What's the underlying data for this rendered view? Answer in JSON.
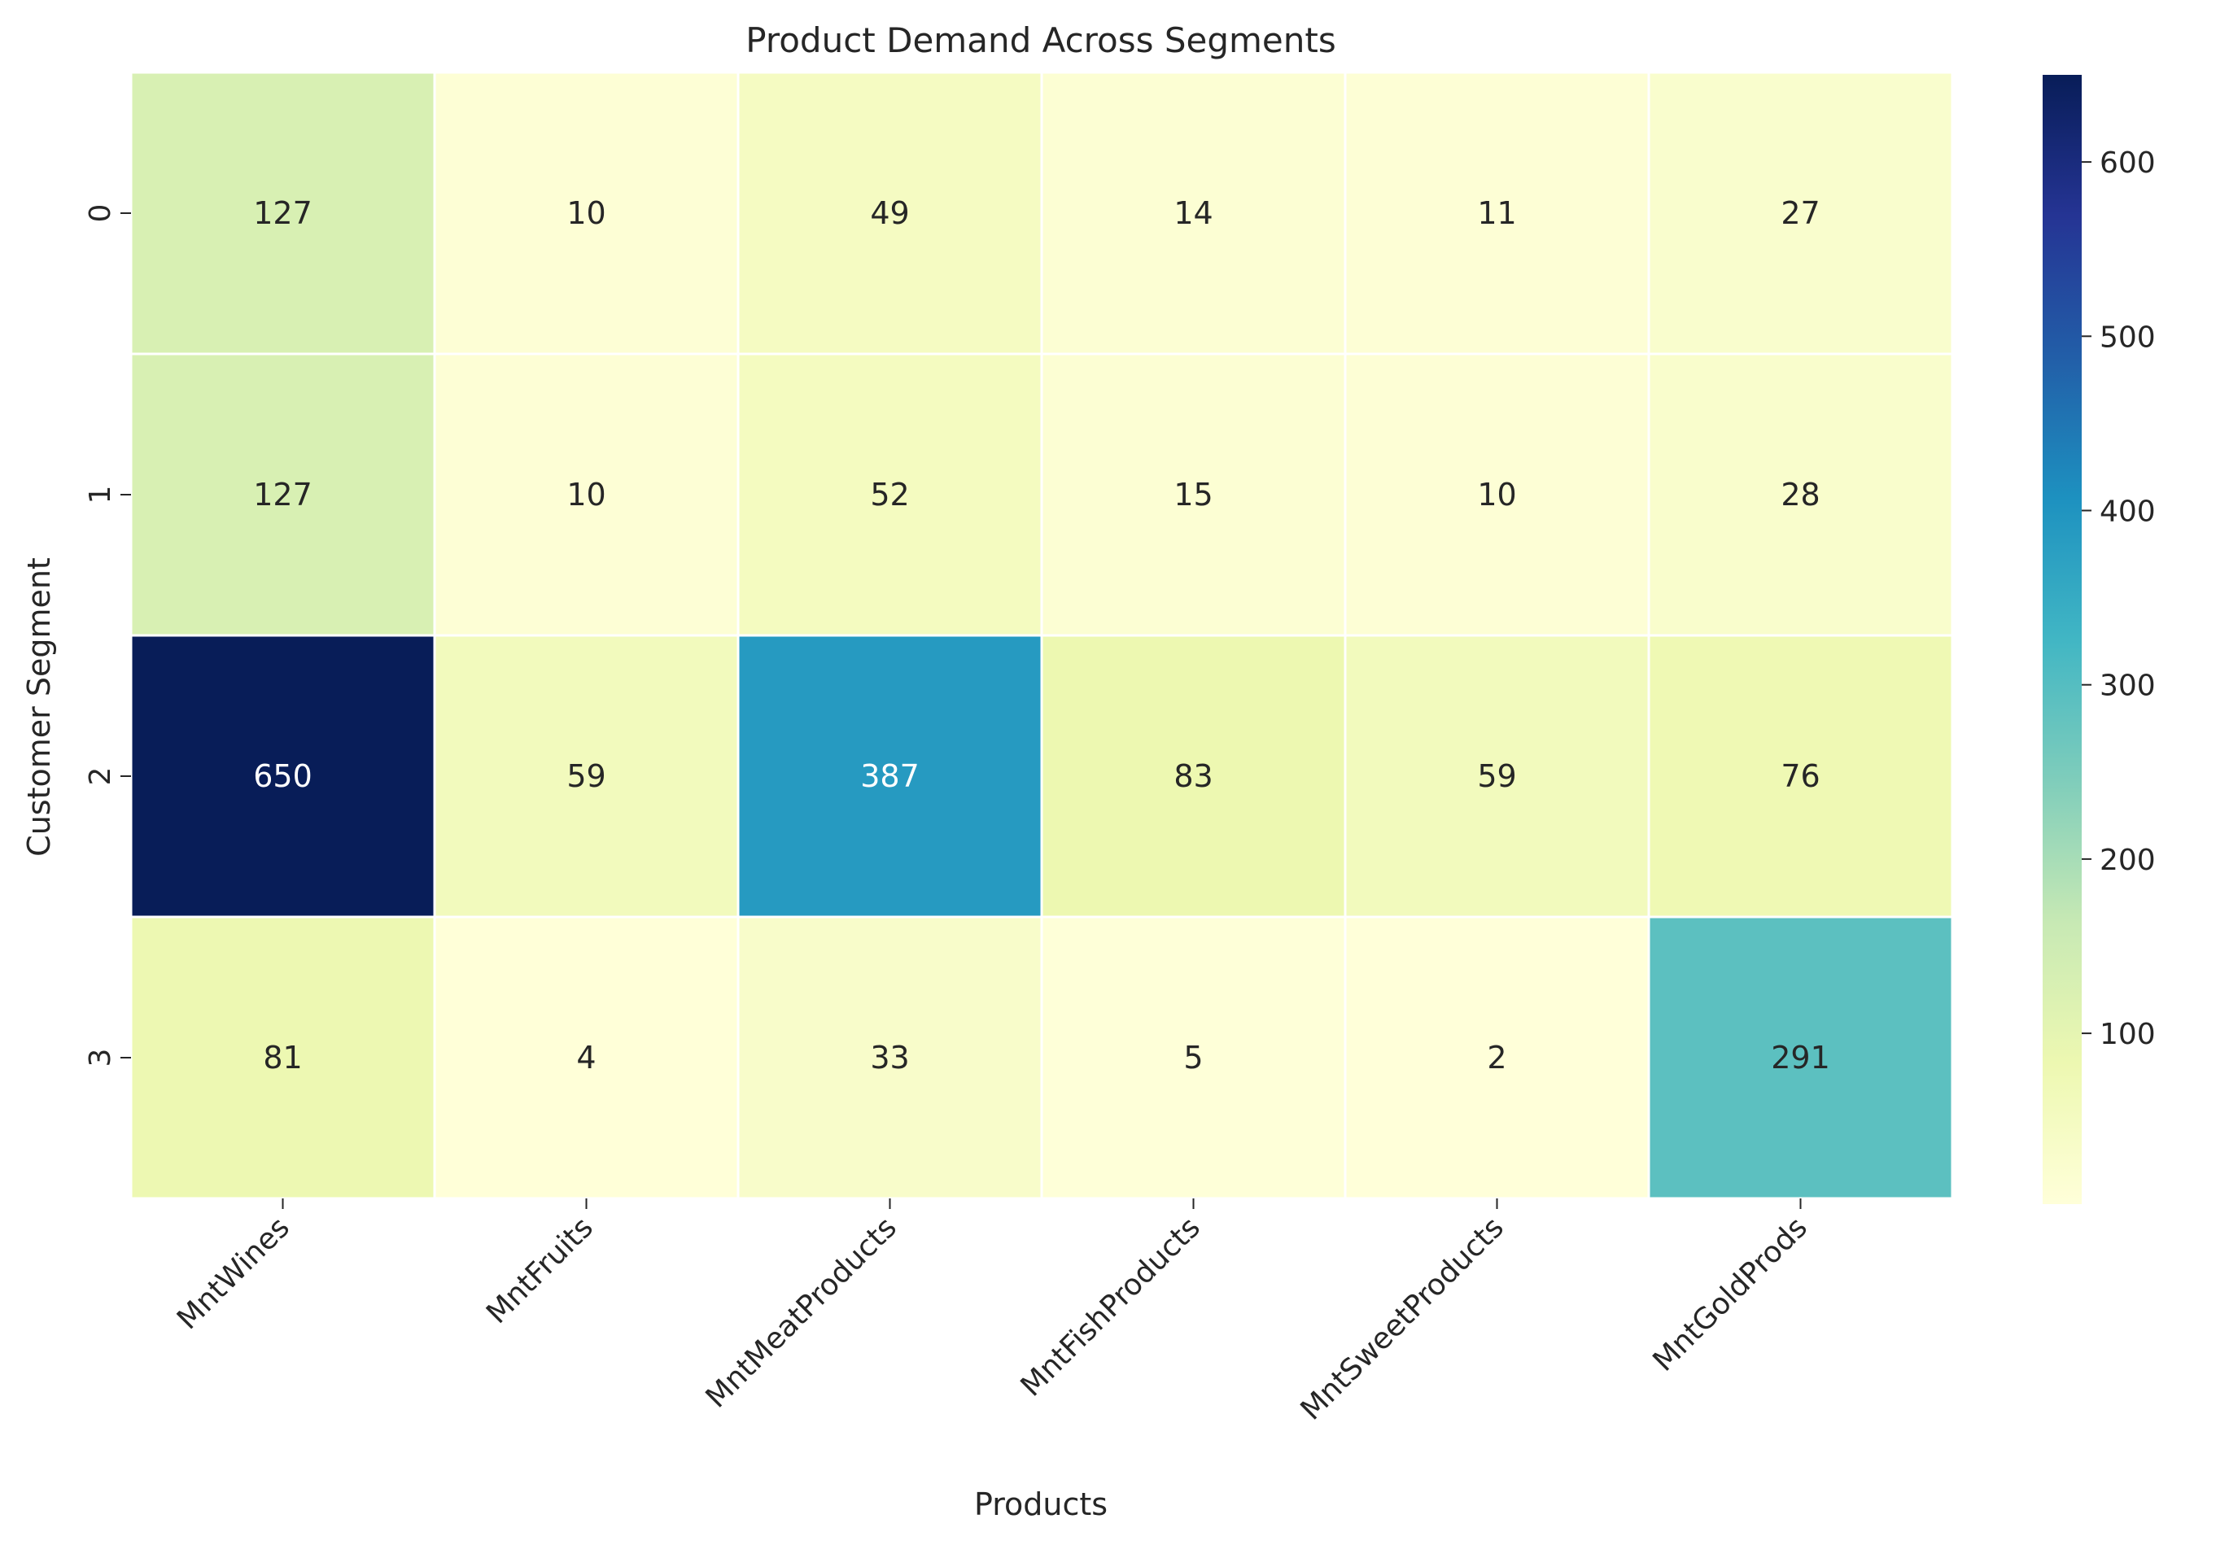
{
  "chart_data": {
    "type": "heatmap",
    "title": "Product Demand Across Segments",
    "xlabel": "Products",
    "ylabel": "Customer Segment",
    "x_categories": [
      "MntWines",
      "MntFruits",
      "MntMeatProducts",
      "MntFishProducts",
      "MntSweetProducts",
      "MntGoldProds"
    ],
    "y_categories": [
      "0",
      "1",
      "2",
      "3"
    ],
    "values": [
      [
        127,
        10,
        49,
        14,
        11,
        27
      ],
      [
        127,
        10,
        52,
        15,
        10,
        28
      ],
      [
        650,
        59,
        387,
        83,
        59,
        76
      ],
      [
        81,
        4,
        33,
        5,
        2,
        291
      ]
    ],
    "colormap": "YlGnBu",
    "vmin": 2,
    "vmax": 650,
    "colorbar_ticks": [
      100,
      200,
      300,
      400,
      500,
      600
    ],
    "annotations": true,
    "grid": false,
    "x_tick_rotation_deg": 45
  }
}
